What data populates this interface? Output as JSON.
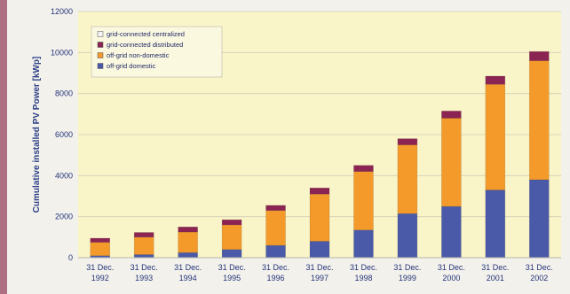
{
  "chart_data": {
    "type": "bar",
    "stacked": true,
    "title": "",
    "xlabel": "",
    "ylabel": "Cumulative installed PV Power [kWp]",
    "ylim": [
      0,
      12000
    ],
    "yticks": [
      0,
      2000,
      4000,
      6000,
      8000,
      10000,
      12000
    ],
    "grid": true,
    "legend_position": "top-left",
    "plot_background": "#f9f5c8",
    "categories": [
      [
        "31 Dec.",
        "1992"
      ],
      [
        "31 Dec.",
        "1993"
      ],
      [
        "31 Dec.",
        "1994"
      ],
      [
        "31 Dec.",
        "1995"
      ],
      [
        "31 Dec.",
        "1996"
      ],
      [
        "31 Dec.",
        "1997"
      ],
      [
        "31 Dec.",
        "1998"
      ],
      [
        "31 Dec.",
        "1999"
      ],
      [
        "31 Dec.",
        "2000"
      ],
      [
        "31 Dec.",
        "2001"
      ],
      [
        "31 Dec.",
        "2002"
      ]
    ],
    "series": [
      {
        "name": "off-grid domestic",
        "color": "#4a5aa8",
        "values": [
          100,
          150,
          250,
          400,
          600,
          800,
          1350,
          2150,
          2500,
          3300,
          3800
        ]
      },
      {
        "name": "off-grid non-domestic",
        "color": "#f39a2b",
        "values": [
          650,
          850,
          1000,
          1200,
          1700,
          2300,
          2850,
          3350,
          4300,
          5150,
          5800
        ]
      },
      {
        "name": "grid-connected distributed",
        "color": "#8b2453",
        "values": [
          200,
          230,
          250,
          250,
          250,
          300,
          300,
          300,
          350,
          400,
          450
        ]
      },
      {
        "name": "grid-connected centralized",
        "color": "#f4f4f4",
        "values": [
          0,
          0,
          0,
          0,
          0,
          0,
          0,
          0,
          0,
          0,
          0
        ]
      }
    ],
    "legend_order": [
      "grid-connected centralized",
      "grid-connected distributed",
      "off-grid non-domestic",
      "off-grid domestic"
    ]
  }
}
